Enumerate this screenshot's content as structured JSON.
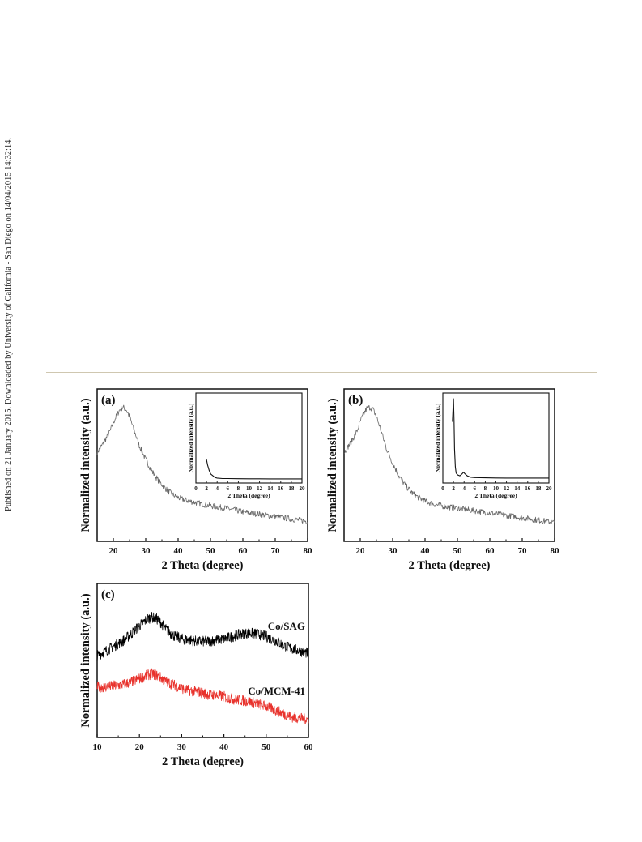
{
  "side_note": "Published on 21 January 2015. Downloaded by University of California - San Diego on 14/04/2015 14:32:14.",
  "chart_data": [
    {
      "type": "line",
      "panel_label": "(a)",
      "xlabel": "2 Theta (degree)",
      "ylabel": "Normalized intensity (a.u.)",
      "xlim": [
        15,
        80
      ],
      "x_ticks": [
        "20",
        "30",
        "40",
        "50",
        "60",
        "70",
        "80"
      ],
      "y_ticks": [],
      "grid": false,
      "series": [
        {
          "color": "#666666",
          "x": [
            15,
            17,
            19,
            20,
            21,
            22,
            23,
            24,
            25,
            26,
            27,
            28,
            30,
            32,
            34,
            36,
            38,
            40,
            42,
            45,
            50,
            55,
            60,
            65,
            70,
            75,
            80
          ],
          "y": [
            0.62,
            0.7,
            0.8,
            0.87,
            0.93,
            0.98,
            1.0,
            0.98,
            0.92,
            0.84,
            0.76,
            0.68,
            0.56,
            0.46,
            0.38,
            0.32,
            0.27,
            0.24,
            0.22,
            0.2,
            0.17,
            0.15,
            0.12,
            0.1,
            0.08,
            0.06,
            0.04
          ]
        }
      ],
      "inset": {
        "xlabel": "2 Theta (degree)",
        "ylabel": "Normalized intensity (a.u.)",
        "xlim": [
          0,
          20
        ],
        "x_ticks": [
          "0",
          "2",
          "4",
          "6",
          "8",
          "10",
          "12",
          "14",
          "16",
          "18",
          "20"
        ],
        "series": [
          {
            "color": "#111111",
            "x": [
              2.0,
              2.2,
              2.5,
              2.8,
              3.2,
              3.6,
              4.0,
              5,
              6,
              8,
              10,
              12,
              14,
              16,
              18,
              20
            ],
            "y": [
              0.26,
              0.2,
              0.14,
              0.1,
              0.08,
              0.06,
              0.055,
              0.05,
              0.05,
              0.048,
              0.047,
              0.047,
              0.046,
              0.046,
              0.046,
              0.046
            ]
          }
        ]
      }
    },
    {
      "type": "line",
      "panel_label": "(b)",
      "xlabel": "2 Theta (degree)",
      "ylabel": "Normalized intensity (a.u.)",
      "xlim": [
        15,
        80
      ],
      "x_ticks": [
        "20",
        "30",
        "40",
        "50",
        "60",
        "70",
        "80"
      ],
      "y_ticks": [],
      "grid": false,
      "series": [
        {
          "color": "#666666",
          "x": [
            15,
            17,
            19,
            20,
            21,
            22,
            23,
            24,
            25,
            26,
            27,
            28,
            30,
            32,
            34,
            36,
            38,
            40,
            42,
            45,
            50,
            55,
            60,
            65,
            70,
            75,
            80
          ],
          "y": [
            0.62,
            0.7,
            0.8,
            0.88,
            0.94,
            0.99,
            1.0,
            0.98,
            0.92,
            0.84,
            0.75,
            0.66,
            0.53,
            0.42,
            0.34,
            0.28,
            0.24,
            0.21,
            0.19,
            0.17,
            0.15,
            0.13,
            0.11,
            0.09,
            0.07,
            0.05,
            0.03
          ]
        }
      ],
      "inset": {
        "xlabel": "2 Theta (degree)",
        "ylabel": "Normalized intensity (a.u.)",
        "xlim": [
          0,
          20
        ],
        "x_ticks": [
          "0",
          "2",
          "4",
          "6",
          "8",
          "10",
          "12",
          "14",
          "16",
          "18",
          "20"
        ],
        "series": [
          {
            "color": "#111111",
            "x": [
              1.8,
              2.0,
              2.1,
              2.2,
              2.35,
              2.5,
              2.8,
              3.2,
              3.6,
              3.9,
              4.2,
              4.6,
              5.2,
              6,
              8,
              10,
              12,
              14,
              16,
              18,
              20
            ],
            "y": [
              0.68,
              0.94,
              0.7,
              0.38,
              0.18,
              0.11,
              0.09,
              0.08,
              0.1,
              0.12,
              0.1,
              0.08,
              0.065,
              0.06,
              0.058,
              0.056,
              0.055,
              0.055,
              0.055,
              0.055,
              0.055
            ]
          }
        ]
      }
    },
    {
      "type": "line",
      "panel_label": "(c)",
      "xlabel": "2 Theta (degree)",
      "ylabel": "Normalized intensity (a.u.)",
      "xlim": [
        10,
        60
      ],
      "x_ticks": [
        "10",
        "20",
        "30",
        "40",
        "50",
        "60"
      ],
      "y_ticks": [],
      "grid": false,
      "series": [
        {
          "name": "Co/SAG",
          "color": "#000000",
          "label_color": "#111111",
          "x": [
            10,
            12,
            14,
            16,
            18,
            20,
            22,
            23,
            24,
            25,
            26,
            28,
            30,
            32,
            34,
            36,
            38,
            40,
            42,
            44,
            46,
            48,
            50,
            52,
            54,
            56,
            58,
            60
          ],
          "y": [
            0.68,
            0.72,
            0.76,
            0.8,
            0.86,
            0.93,
            0.99,
            1.0,
            0.99,
            0.96,
            0.91,
            0.85,
            0.82,
            0.81,
            0.8,
            0.8,
            0.81,
            0.82,
            0.84,
            0.86,
            0.87,
            0.86,
            0.84,
            0.81,
            0.77,
            0.74,
            0.72,
            0.7
          ]
        },
        {
          "name": "Co/MCM-41",
          "color": "#e8322c",
          "label_color": "#e8322c",
          "x": [
            10,
            12,
            14,
            16,
            18,
            20,
            22,
            23,
            24,
            25,
            26,
            28,
            30,
            32,
            34,
            36,
            38,
            40,
            42,
            44,
            46,
            48,
            50,
            52,
            54,
            56,
            58,
            60
          ],
          "y": [
            0.42,
            0.42,
            0.43,
            0.44,
            0.46,
            0.49,
            0.52,
            0.53,
            0.52,
            0.5,
            0.47,
            0.44,
            0.41,
            0.39,
            0.38,
            0.36,
            0.35,
            0.34,
            0.32,
            0.31,
            0.3,
            0.28,
            0.26,
            0.23,
            0.2,
            0.17,
            0.16,
            0.15
          ]
        }
      ]
    }
  ]
}
